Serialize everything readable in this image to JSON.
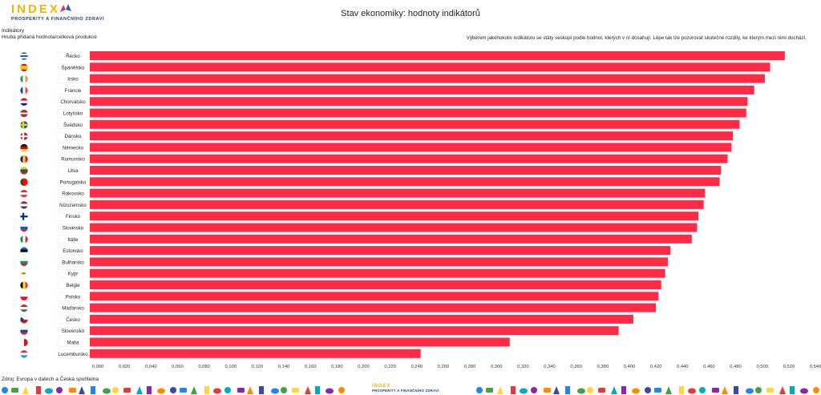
{
  "logo": {
    "text": "INDEX",
    "subtitle": "PROSPERITY A FINANČNÍHO ZDRAVÍ"
  },
  "meta": {
    "line1": "Indikátory",
    "line2": "Hrubá přidaná hodnota/celková produkce"
  },
  "header": {
    "title": "Stav ekonomiky: hodnoty indikátorů"
  },
  "note": "Výběrem jakéhokoliv indikátoru se státy seskupí podle hodnot, kterých v ní dosahují. Lépe tak lze pozorovat skutečné rozdíly, ke kterým mezi nimi dochází.",
  "footer": {
    "source": "Zdroj: Evropa v datech a Česká spořitelna",
    "logo_text": "INDEX",
    "logo_subtitle": "PROSPERITY A FINANČNÍHO ZDRAVÍ"
  },
  "colors": {
    "bar": "#ff2a45",
    "label_bg": "#ffffff",
    "logo_yellow": "#f4b400",
    "logo_blue": "#1a3a7a"
  },
  "chart_data": {
    "type": "bar",
    "orientation": "horizontal",
    "categories": [
      "Řecko",
      "Španělsko",
      "Irsko",
      "Francie",
      "Chorvatsko",
      "Lotyšsko",
      "Švédsko",
      "Dánsko",
      "Německo",
      "Rumunsko",
      "Litva",
      "Portugalsko",
      "Rakousko",
      "Nizozemsko",
      "Finsko",
      "Slovinsko",
      "Itálie",
      "Estonsko",
      "Bulharsko",
      "Kypr",
      "Belgie",
      "Polsko",
      "Maďarsko",
      "Česko",
      "Slovensko",
      "Malta",
      "Lucembursko"
    ],
    "values": [
      0.523,
      0.512,
      0.508,
      0.5,
      0.495,
      0.494,
      0.489,
      0.484,
      0.483,
      0.48,
      0.475,
      0.474,
      0.463,
      0.462,
      0.458,
      0.457,
      0.453,
      0.437,
      0.435,
      0.433,
      0.43,
      0.428,
      0.426,
      0.409,
      0.398,
      0.316,
      0.249
    ],
    "xlim": [
      0,
      0.54
    ],
    "xticks": [
      "0,000",
      "0,020",
      "0,040",
      "0,060",
      "0,080",
      "0,100",
      "0,120",
      "0,140",
      "0,160",
      "0,180",
      "0,200",
      "0,220",
      "0,240",
      "0,260",
      "0,280",
      "0,300",
      "0,320",
      "0,340",
      "0,360",
      "0,380",
      "0,400",
      "0,420",
      "0,440",
      "0,460",
      "0,480",
      "0,500",
      "0,520",
      "0,540"
    ],
    "grid": false,
    "legend": "none",
    "flag_icons": [
      "greece-flag-icon",
      "spain-flag-icon",
      "ireland-flag-icon",
      "france-flag-icon",
      "croatia-flag-icon",
      "latvia-flag-icon",
      "sweden-flag-icon",
      "denmark-flag-icon",
      "germany-flag-icon",
      "romania-flag-icon",
      "lithuania-flag-icon",
      "portugal-flag-icon",
      "austria-flag-icon",
      "netherlands-flag-icon",
      "finland-flag-icon",
      "slovenia-flag-icon",
      "italy-flag-icon",
      "estonia-flag-icon",
      "bulgaria-flag-icon",
      "cyprus-flag-icon",
      "belgium-flag-icon",
      "poland-flag-icon",
      "hungary-flag-icon",
      "czechia-flag-icon",
      "slovakia-flag-icon",
      "malta-flag-icon",
      "luxembourg-flag-icon"
    ]
  }
}
